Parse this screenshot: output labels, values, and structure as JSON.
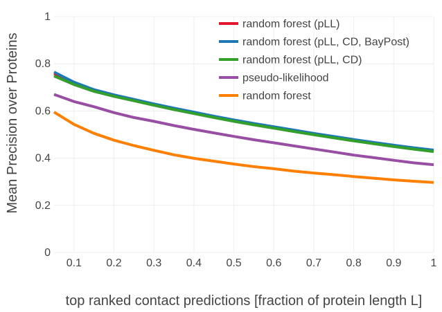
{
  "chart_data": {
    "type": "line",
    "xlabel": "top ranked contact predictions [fraction of protein length L]",
    "ylabel": "Mean Precision over Proteins",
    "xlim": [
      0.05,
      1.0
    ],
    "ylim": [
      0,
      1
    ],
    "xticks": [
      "0.1",
      "0.2",
      "0.3",
      "0.4",
      "0.5",
      "0.6",
      "0.7",
      "0.8",
      "0.9",
      "1"
    ],
    "yticks": [
      "0",
      "0.2",
      "0.4",
      "0.6",
      "0.8",
      "1"
    ],
    "grid": true,
    "legend_position": "top-right",
    "x": [
      0.05,
      0.1,
      0.15,
      0.2,
      0.25,
      0.3,
      0.35,
      0.4,
      0.45,
      0.5,
      0.55,
      0.6,
      0.65,
      0.7,
      0.75,
      0.8,
      0.85,
      0.9,
      0.95,
      1.0
    ],
    "series": [
      {
        "name": "random forest (pLL)",
        "color": "#e4162f",
        "values": [
          0.758,
          0.718,
          0.69,
          0.668,
          0.648,
          0.628,
          0.61,
          0.592,
          0.575,
          0.559,
          0.544,
          0.53,
          0.515,
          0.501,
          0.488,
          0.475,
          0.463,
          0.451,
          0.44,
          0.43
        ]
      },
      {
        "name": "random forest (pLL, CD, BayPost)",
        "color": "#1f78b4",
        "values": [
          0.765,
          0.722,
          0.69,
          0.668,
          0.649,
          0.63,
          0.612,
          0.595,
          0.578,
          0.562,
          0.547,
          0.533,
          0.519,
          0.505,
          0.492,
          0.479,
          0.467,
          0.455,
          0.444,
          0.434
        ]
      },
      {
        "name": "random forest (pLL, CD)",
        "color": "#33a02c",
        "values": [
          0.748,
          0.712,
          0.683,
          0.662,
          0.643,
          0.624,
          0.606,
          0.589,
          0.572,
          0.556,
          0.541,
          0.527,
          0.513,
          0.499,
          0.486,
          0.473,
          0.461,
          0.449,
          0.438,
          0.428
        ]
      },
      {
        "name": "pseudo-likelihood",
        "color": "#984ea3",
        "values": [
          0.67,
          0.64,
          0.618,
          0.593,
          0.572,
          0.556,
          0.538,
          0.522,
          0.507,
          0.492,
          0.478,
          0.465,
          0.452,
          0.439,
          0.426,
          0.413,
          0.402,
          0.391,
          0.38,
          0.372
        ]
      },
      {
        "name": "random forest",
        "color": "#ff7f00",
        "values": [
          0.595,
          0.543,
          0.505,
          0.476,
          0.453,
          0.433,
          0.414,
          0.399,
          0.387,
          0.375,
          0.364,
          0.355,
          0.345,
          0.337,
          0.33,
          0.322,
          0.315,
          0.308,
          0.302,
          0.297
        ]
      }
    ]
  }
}
